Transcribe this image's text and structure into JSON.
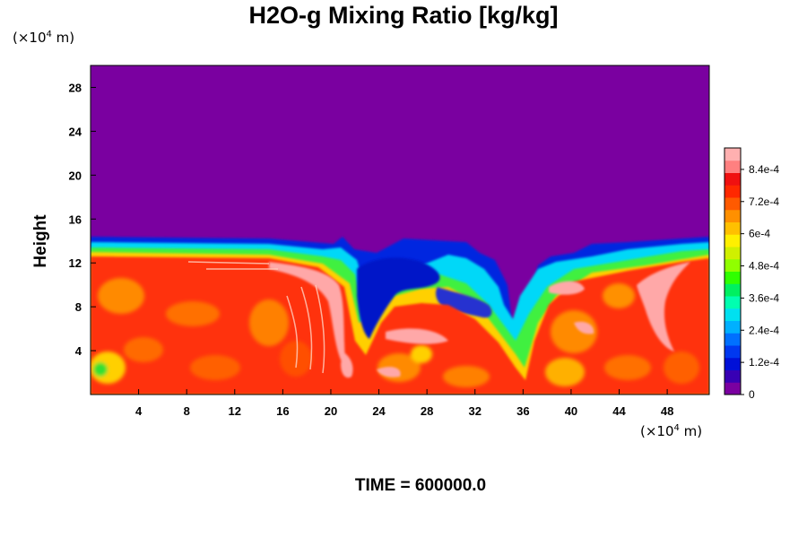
{
  "chart_data": {
    "type": "heatmap",
    "title": "H2O-g Mixing Ratio [kg/kg]",
    "ylabel": "Height",
    "x_unit_label": {
      "prefix": "(×10",
      "exp": "4",
      "suffix": " m)"
    },
    "y_unit_label": {
      "prefix": "(×10",
      "exp": "4",
      "suffix": " m)"
    },
    "footer": "TIME = 600000.0",
    "xlim": [
      0,
      51.5
    ],
    "ylim": [
      0,
      30
    ],
    "x_ticks": [
      4,
      8,
      12,
      16,
      20,
      24,
      28,
      32,
      36,
      40,
      44,
      48
    ],
    "y_ticks": [
      4,
      8,
      12,
      16,
      20,
      24,
      28
    ],
    "colorbar": {
      "min": 0,
      "max": 0.00092,
      "tick_values": [
        0,
        0.00012,
        0.00024,
        0.00036,
        0.00048,
        0.0006,
        0.00072,
        0.00084
      ],
      "tick_labels": [
        "0",
        "1.2e-4",
        "2.4e-4",
        "3.6e-4",
        "4.8e-4",
        "6e-4",
        "7.2e-4",
        "8.4e-4"
      ],
      "colors": [
        "#7a00a0",
        "#3800b4",
        "#0010d8",
        "#0038f0",
        "#0070ff",
        "#00b0ff",
        "#00e0f0",
        "#00ffb0",
        "#00f060",
        "#30ff00",
        "#90ff00",
        "#d0f000",
        "#fff000",
        "#ffc000",
        "#ff9000",
        "#ff5a00",
        "#ff2800",
        "#f01010",
        "#ff8080",
        "#ffb0b0"
      ]
    },
    "moisture_top_height": 14,
    "moisture_top_profile": [
      [
        0,
        14
      ],
      [
        14,
        14
      ],
      [
        18,
        13.5
      ],
      [
        22,
        12.8
      ],
      [
        24,
        12
      ],
      [
        28,
        13
      ],
      [
        31,
        12
      ],
      [
        34,
        8
      ],
      [
        35.5,
        6
      ],
      [
        38,
        11
      ],
      [
        40,
        12
      ],
      [
        44,
        13
      ],
      [
        48,
        13.5
      ],
      [
        51.5,
        14
      ]
    ]
  }
}
